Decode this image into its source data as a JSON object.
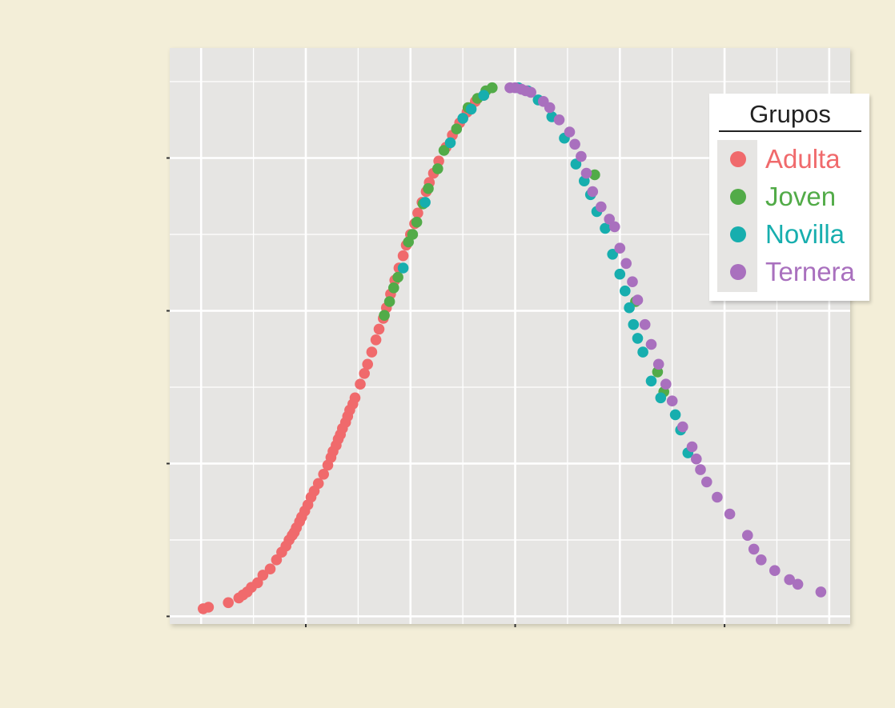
{
  "chart_data": {
    "type": "scatter",
    "title": "",
    "xlabel": "",
    "ylabel": "",
    "grid": true,
    "tick_labels_visible": false,
    "panel_background": "#e6e5e3",
    "legend": {
      "title": "Grupos",
      "placement": "top-right"
    },
    "series": [
      {
        "name": "Adulta",
        "color": "#f06a6c",
        "x": [
          -2.98,
          -2.93,
          -2.74,
          -2.64,
          -2.6,
          -2.56,
          -2.52,
          -2.46,
          -2.41,
          -2.34,
          -2.28,
          -2.23,
          -2.19,
          -2.16,
          -2.13,
          -2.11,
          -2.09,
          -2.06,
          -2.04,
          -2.01,
          -1.98,
          -1.95,
          -1.92,
          -1.88,
          -1.83,
          -1.79,
          -1.76,
          -1.74,
          -1.71,
          -1.69,
          -1.67,
          -1.65,
          -1.62,
          -1.6,
          -1.58,
          -1.55,
          -1.53,
          -1.48,
          -1.44,
          -1.41,
          -1.37,
          -1.33,
          -1.3,
          -1.26,
          -1.23,
          -1.19,
          -1.15,
          -1.11,
          -1.07,
          -1.04,
          -1.0,
          -0.96,
          -0.93,
          -0.89,
          -0.85,
          -0.82,
          -0.78,
          -0.73,
          -0.66,
          -0.6,
          -0.53,
          -0.46,
          -0.38,
          -0.3
        ],
        "y": [
          0.005,
          0.006,
          0.009,
          0.012,
          0.014,
          0.016,
          0.019,
          0.022,
          0.027,
          0.031,
          0.037,
          0.042,
          0.046,
          0.05,
          0.053,
          0.055,
          0.058,
          0.062,
          0.065,
          0.069,
          0.073,
          0.078,
          0.082,
          0.087,
          0.093,
          0.099,
          0.104,
          0.108,
          0.112,
          0.116,
          0.119,
          0.123,
          0.127,
          0.131,
          0.135,
          0.139,
          0.143,
          0.152,
          0.159,
          0.165,
          0.173,
          0.181,
          0.188,
          0.195,
          0.202,
          0.211,
          0.22,
          0.228,
          0.236,
          0.243,
          0.25,
          0.257,
          0.264,
          0.271,
          0.278,
          0.284,
          0.29,
          0.298,
          0.307,
          0.315,
          0.323,
          0.33,
          0.337,
          0.341
        ]
      },
      {
        "name": "Joven",
        "color": "#52ab48",
        "x": [
          -1.25,
          -1.2,
          -1.16,
          -1.12,
          -1.02,
          -0.98,
          -0.94,
          -0.88,
          -0.83,
          -0.74,
          -0.68,
          -0.56,
          -0.45,
          -0.36,
          -0.28,
          -0.22,
          0.76,
          1.15,
          1.36,
          1.42
        ],
        "y": [
          0.197,
          0.206,
          0.215,
          0.222,
          0.245,
          0.25,
          0.258,
          0.27,
          0.28,
          0.293,
          0.305,
          0.319,
          0.333,
          0.339,
          0.344,
          0.346,
          0.289,
          0.206,
          0.16,
          0.147
        ]
      },
      {
        "name": "Novilla",
        "color": "#17aeae",
        "x": [
          -1.07,
          -0.86,
          -0.62,
          -0.5,
          -0.42,
          -0.3,
          0.03,
          0.12,
          0.22,
          0.35,
          0.47,
          0.58,
          0.66,
          0.72,
          0.78,
          0.86,
          0.93,
          1.0,
          1.05,
          1.09,
          1.13,
          1.17,
          1.22,
          1.3,
          1.39,
          1.53,
          1.58,
          1.65
        ],
        "y": [
          0.228,
          0.271,
          0.31,
          0.326,
          0.332,
          0.341,
          0.346,
          0.344,
          0.338,
          0.327,
          0.313,
          0.296,
          0.285,
          0.276,
          0.265,
          0.254,
          0.237,
          0.224,
          0.213,
          0.202,
          0.191,
          0.182,
          0.173,
          0.154,
          0.143,
          0.132,
          0.122,
          0.107
        ]
      },
      {
        "name": "Ternera",
        "color": "#a970be",
        "x": [
          -0.05,
          0.0,
          0.06,
          0.1,
          0.15,
          0.27,
          0.33,
          0.42,
          0.52,
          0.57,
          0.63,
          0.68,
          0.74,
          0.82,
          0.9,
          0.95,
          1.0,
          1.06,
          1.12,
          1.17,
          1.24,
          1.3,
          1.37,
          1.44,
          1.5,
          1.6,
          1.69,
          1.73,
          1.77,
          1.83,
          1.93,
          2.05,
          2.22,
          2.28,
          2.35,
          2.48,
          2.62,
          2.7,
          2.92
        ],
        "y": [
          0.346,
          0.346,
          0.345,
          0.344,
          0.343,
          0.337,
          0.333,
          0.325,
          0.317,
          0.309,
          0.301,
          0.29,
          0.278,
          0.268,
          0.26,
          0.255,
          0.241,
          0.231,
          0.219,
          0.207,
          0.191,
          0.178,
          0.165,
          0.152,
          0.141,
          0.124,
          0.111,
          0.103,
          0.096,
          0.088,
          0.078,
          0.067,
          0.053,
          0.044,
          0.037,
          0.03,
          0.024,
          0.021,
          0.016
        ]
      }
    ],
    "xlim": [
      -3.3,
      3.2
    ],
    "ylim": [
      -0.005,
      0.372
    ]
  }
}
